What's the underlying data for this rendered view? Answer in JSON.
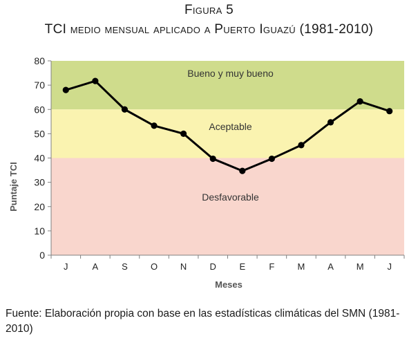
{
  "figure": {
    "label": "Figura 5",
    "title": "TCI medio mensual aplicado a Puerto Iguazú (1981-2010)",
    "source": "Fuente: Elaboración propia con base en las estadísticas climáticas del SMN (1981-2010)"
  },
  "chart_data": {
    "type": "line",
    "title": "",
    "xlabel": "Meses",
    "ylabel": "Puntaje TCI",
    "ylim": [
      0,
      80
    ],
    "yticks": [
      0,
      10,
      20,
      30,
      40,
      50,
      60,
      70,
      80
    ],
    "categories": [
      "J",
      "A",
      "S",
      "O",
      "N",
      "D",
      "E",
      "F",
      "M",
      "A",
      "M",
      "J"
    ],
    "series": [
      {
        "values": [
          68,
          71.7,
          60,
          53.3,
          50,
          39.7,
          34.7,
          39.7,
          45.3,
          54.7,
          63.3,
          59.3
        ],
        "color": "#000000"
      }
    ],
    "bands": [
      {
        "label": "Bueno y muy bueno",
        "from": 60,
        "to": 80,
        "color": "#cfdc8c"
      },
      {
        "label": "Aceptable",
        "from": 40,
        "to": 60,
        "color": "#faf3b0"
      },
      {
        "label": "Desfavorable",
        "from": 0,
        "to": 40,
        "color": "#f9d6cd"
      }
    ],
    "grid": false,
    "legend": "none"
  }
}
